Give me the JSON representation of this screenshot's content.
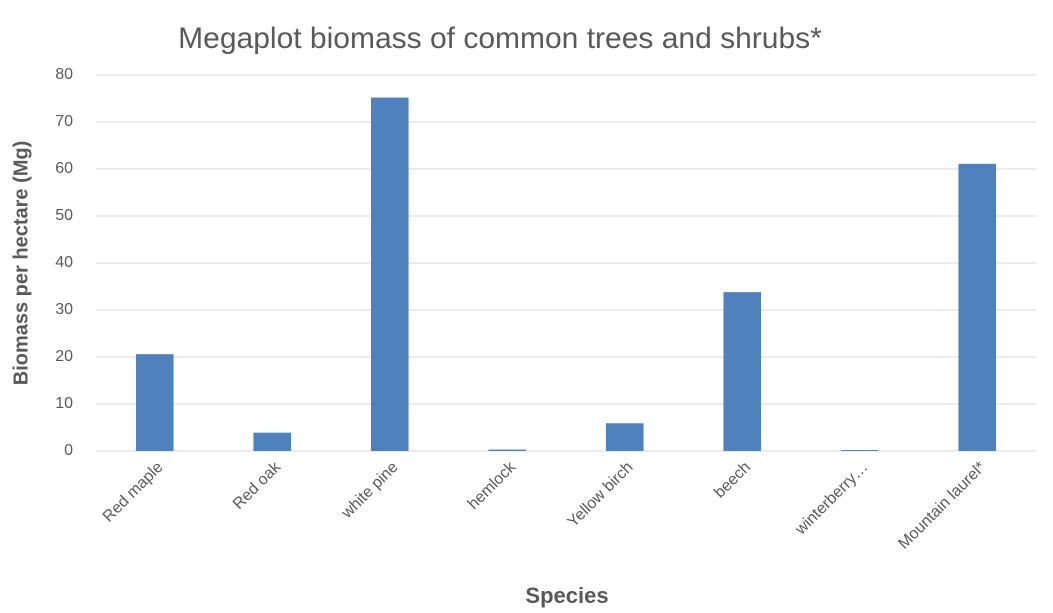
{
  "chart_data": {
    "type": "bar",
    "title": "Megaplot biomass of common trees and shrubs*",
    "x_label": "Species",
    "y_label": "Biomass per hectare (Mg)",
    "categories": [
      "Red maple",
      "Red oak",
      "white pine",
      "hemlock",
      "Yellow birch",
      "beech",
      "winterberry…",
      "Mountain laurel*"
    ],
    "values": [
      20.6,
      3.9,
      75.2,
      0.3,
      5.9,
      33.8,
      0.2,
      61.1
    ],
    "color": "#4f81bd",
    "ylim": [
      0,
      80
    ],
    "yticks": [
      0,
      10,
      20,
      30,
      40,
      50,
      60,
      70,
      80
    ],
    "grid": true
  }
}
